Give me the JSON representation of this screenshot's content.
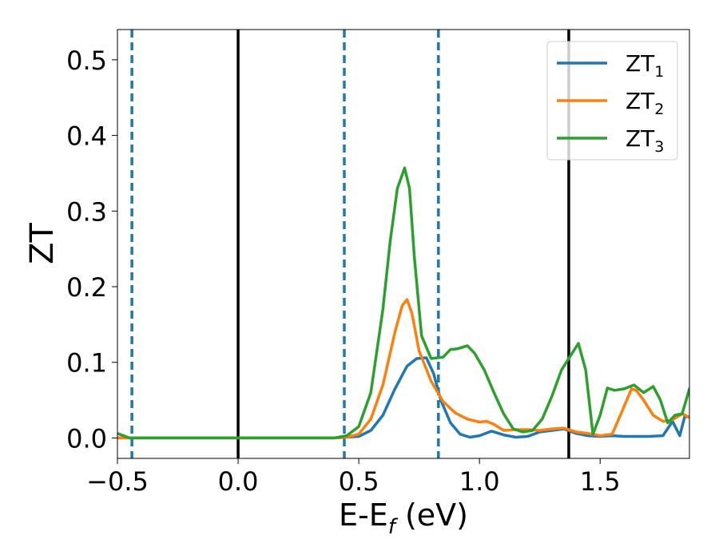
{
  "chart_data": {
    "type": "line",
    "xlabel_main": "E-E",
    "xlabel_sub": "f",
    "xlabel_tail": " (eV)",
    "ylabel": "ZT",
    "xlim": [
      -0.5,
      1.87
    ],
    "ylim": [
      -0.027,
      0.54
    ],
    "x_ticks": [
      -0.5,
      0.0,
      0.5,
      1.0,
      1.5
    ],
    "x_tick_labels": [
      "−0.5",
      "0.0",
      "0.5",
      "1.0",
      "1.5"
    ],
    "y_ticks": [
      0.0,
      0.1,
      0.2,
      0.3,
      0.4,
      0.5
    ],
    "y_tick_labels": [
      "0.0",
      "0.1",
      "0.2",
      "0.3",
      "0.4",
      "0.5"
    ],
    "grid": false,
    "legend_position": "top-right",
    "vlines": [
      {
        "x": -0.44,
        "style": "dashed",
        "color": "#1f77b4"
      },
      {
        "x": 0.0,
        "style": "solid",
        "color": "#000000"
      },
      {
        "x": 0.44,
        "style": "dashed",
        "color": "#1f77b4"
      },
      {
        "x": 0.83,
        "style": "dashed",
        "color": "#1f77b4"
      },
      {
        "x": 1.37,
        "style": "solid",
        "color": "#000000"
      }
    ],
    "series": [
      {
        "name": "ZT",
        "sub": "1",
        "color": "#1f77b4",
        "x": [
          -0.5,
          -0.45,
          0.4,
          0.5,
          0.55,
          0.6,
          0.65,
          0.7,
          0.74,
          0.78,
          0.81,
          0.84,
          0.88,
          0.92,
          0.96,
          1.0,
          1.05,
          1.1,
          1.15,
          1.2,
          1.25,
          1.3,
          1.35,
          1.4,
          1.45,
          1.5,
          1.55,
          1.6,
          1.7,
          1.76,
          1.8,
          1.83,
          1.85,
          1.87
        ],
        "y": [
          0.0,
          0.0,
          0.0,
          0.002,
          0.01,
          0.03,
          0.065,
          0.095,
          0.105,
          0.106,
          0.085,
          0.05,
          0.02,
          0.005,
          0.001,
          0.003,
          0.009,
          0.004,
          0.001,
          0.002,
          0.008,
          0.01,
          0.012,
          0.006,
          0.003,
          0.002,
          0.003,
          0.002,
          0.002,
          0.003,
          0.022,
          0.003,
          0.028,
          0.028
        ]
      },
      {
        "name": "ZT",
        "sub": "2",
        "color": "#ff7f0e",
        "x": [
          -0.5,
          -0.45,
          0.4,
          0.45,
          0.5,
          0.55,
          0.6,
          0.65,
          0.68,
          0.7,
          0.72,
          0.75,
          0.8,
          0.85,
          0.9,
          0.95,
          1.0,
          1.03,
          1.06,
          1.1,
          1.15,
          1.2,
          1.25,
          1.3,
          1.35,
          1.4,
          1.45,
          1.5,
          1.55,
          1.6,
          1.63,
          1.65,
          1.68,
          1.72,
          1.76,
          1.8,
          1.84,
          1.87
        ],
        "y": [
          0.0,
          0.0,
          0.0,
          0.001,
          0.005,
          0.025,
          0.07,
          0.14,
          0.175,
          0.183,
          0.165,
          0.115,
          0.075,
          0.048,
          0.033,
          0.025,
          0.021,
          0.022,
          0.018,
          0.01,
          0.011,
          0.011,
          0.01,
          0.012,
          0.013,
          0.008,
          0.006,
          0.003,
          0.005,
          0.042,
          0.065,
          0.063,
          0.05,
          0.03,
          0.022,
          0.024,
          0.032,
          0.027
        ]
      },
      {
        "name": "ZT",
        "sub": "3",
        "color": "#2ca02c",
        "x": [
          -0.5,
          -0.45,
          0.4,
          0.45,
          0.5,
          0.55,
          0.6,
          0.63,
          0.66,
          0.69,
          0.71,
          0.73,
          0.76,
          0.8,
          0.85,
          0.88,
          0.91,
          0.95,
          0.98,
          1.02,
          1.06,
          1.1,
          1.14,
          1.18,
          1.22,
          1.26,
          1.3,
          1.34,
          1.38,
          1.41,
          1.44,
          1.47,
          1.5,
          1.53,
          1.56,
          1.6,
          1.64,
          1.68,
          1.72,
          1.75,
          1.78,
          1.81,
          1.84,
          1.87
        ],
        "y": [
          0.006,
          0.0,
          0.0,
          0.003,
          0.015,
          0.06,
          0.17,
          0.26,
          0.33,
          0.357,
          0.33,
          0.24,
          0.135,
          0.105,
          0.107,
          0.117,
          0.118,
          0.122,
          0.112,
          0.09,
          0.06,
          0.032,
          0.012,
          0.008,
          0.01,
          0.025,
          0.055,
          0.09,
          0.11,
          0.125,
          0.09,
          0.005,
          0.03,
          0.066,
          0.063,
          0.065,
          0.07,
          0.06,
          0.068,
          0.05,
          0.02,
          0.03,
          0.032,
          0.065
        ]
      }
    ]
  }
}
